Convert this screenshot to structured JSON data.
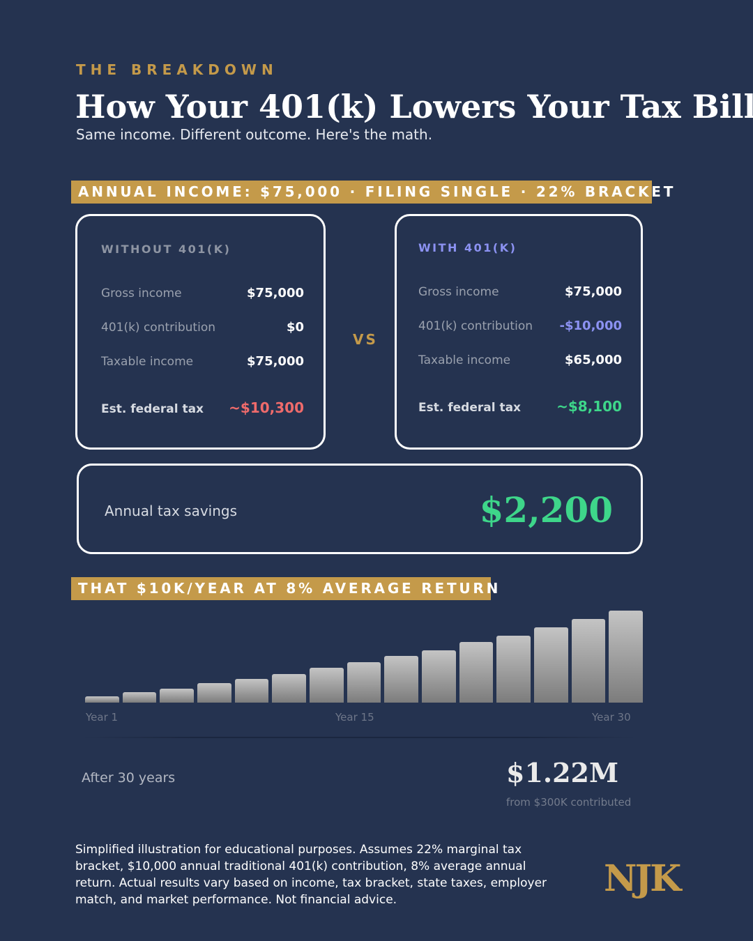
{
  "header": {
    "eyebrow": "THE BREAKDOWN",
    "title": "How Your 401(k) Lowers Your Tax Bill",
    "subtitle": "Same income. Different outcome. Here's the math."
  },
  "income_band": "ANNUAL INCOME: $75,000 · FILING SINGLE · 22% BRACKET",
  "without": {
    "label": "WITHOUT 401(K)",
    "rows": [
      {
        "label": "Gross income",
        "value": "$75,000"
      },
      {
        "label": "401(k) contribution",
        "value": "$0"
      },
      {
        "label": "Taxable income",
        "value": "$75,000"
      }
    ],
    "tax_label": "Est. federal tax",
    "tax_value": "~$10,300"
  },
  "vs": "VS",
  "with": {
    "label": "WITH 401(K)",
    "rows": [
      {
        "label": "Gross income",
        "value": "$75,000"
      },
      {
        "label": "401(k) contribution",
        "value": "-$10,000"
      },
      {
        "label": "Taxable income",
        "value": "$65,000"
      }
    ],
    "tax_label": "Est. federal tax",
    "tax_value": "~$8,100"
  },
  "savings": {
    "label": "Annual tax savings",
    "value": "$2,200"
  },
  "growth_band": "THAT $10K/YEAR AT 8% AVERAGE RETURN",
  "chart_data": {
    "type": "bar",
    "title": "",
    "xlabel": "",
    "ylabel": "",
    "tick_labels": [
      "Year 1",
      "Year 15",
      "Year 30"
    ],
    "values": [
      0.07,
      0.11,
      0.15,
      0.21,
      0.26,
      0.31,
      0.38,
      0.44,
      0.51,
      0.57,
      0.66,
      0.73,
      0.82,
      0.91,
      1.0
    ],
    "ylim": [
      0,
      1.0
    ]
  },
  "result": {
    "label": "After 30 years",
    "total": "$1.22M",
    "sub": "from $300K contributed"
  },
  "disclaimer": "Simplified illustration for educational purposes. Assumes 22% marginal tax bracket, $10,000 annual traditional 401(k) contribution, 8% average annual return. Actual results vary based on income, tax bracket, state taxes, employer match, and market performance. Not financial advice.",
  "logo": "NJK",
  "colors": {
    "background": "#253350",
    "accent_gold": "#c49a4a",
    "negative_red": "#ef6b6b",
    "accent_blue": "#8c92f2",
    "positive_green": "#3ed68a"
  }
}
